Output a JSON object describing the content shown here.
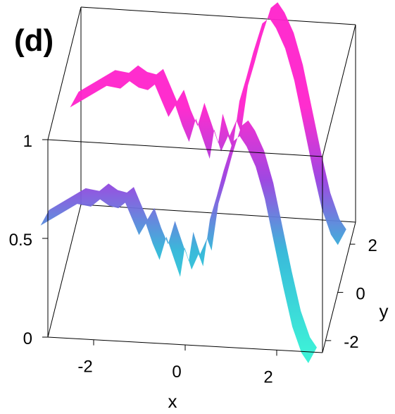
{
  "panel_label": "(d)",
  "colors": {
    "low": "#33f0d6",
    "mid": "#9a3ee0",
    "high": "#ff22cc"
  },
  "chart_data": {
    "type": "surface",
    "xlabel": "x",
    "ylabel": "y",
    "zlabel": "",
    "xlim": [
      -3,
      3
    ],
    "ylim": [
      -2.5,
      3
    ],
    "zlim": [
      0,
      1.2
    ],
    "x_ticks": [
      {
        "value": -2,
        "label": "-2"
      },
      {
        "value": 0,
        "label": "0"
      },
      {
        "value": 2,
        "label": "2"
      }
    ],
    "y_ticks": [
      {
        "value": -2,
        "label": "-2"
      },
      {
        "value": 0,
        "label": "0"
      },
      {
        "value": 2,
        "label": "2"
      }
    ],
    "z_ticks": [
      {
        "value": 0,
        "label": "0"
      },
      {
        "value": 0.5,
        "label": "0.5"
      },
      {
        "value": 1,
        "label": "1"
      }
    ],
    "grid": false,
    "series": [
      {
        "profile": [
          [
            -3.0,
            0.62
          ],
          [
            -2.6,
            0.68
          ],
          [
            -2.2,
            0.74
          ],
          [
            -1.9,
            0.73
          ],
          [
            -1.7,
            0.77
          ],
          [
            -1.5,
            0.74
          ],
          [
            -1.3,
            0.73
          ],
          [
            -1.15,
            0.76
          ],
          [
            -1.0,
            0.68
          ],
          [
            -0.85,
            0.6
          ],
          [
            -0.7,
            0.66
          ],
          [
            -0.55,
            0.56
          ],
          [
            -0.4,
            0.48
          ],
          [
            -0.25,
            0.6
          ],
          [
            -0.1,
            0.5
          ],
          [
            0.05,
            0.4
          ],
          [
            0.15,
            0.55
          ],
          [
            0.3,
            0.44
          ],
          [
            0.45,
            0.52
          ],
          [
            0.55,
            0.46
          ],
          [
            0.7,
            0.7
          ],
          [
            0.85,
            0.82
          ],
          [
            1.0,
            0.95
          ],
          [
            1.2,
            1.1
          ],
          [
            1.35,
            1.13
          ],
          [
            1.5,
            1.08
          ],
          [
            1.7,
            0.98
          ],
          [
            1.9,
            0.82
          ],
          [
            2.1,
            0.6
          ],
          [
            2.3,
            0.38
          ],
          [
            2.5,
            0.18
          ],
          [
            2.7,
            0.05
          ],
          [
            2.85,
            0.0
          ]
        ]
      }
    ]
  }
}
